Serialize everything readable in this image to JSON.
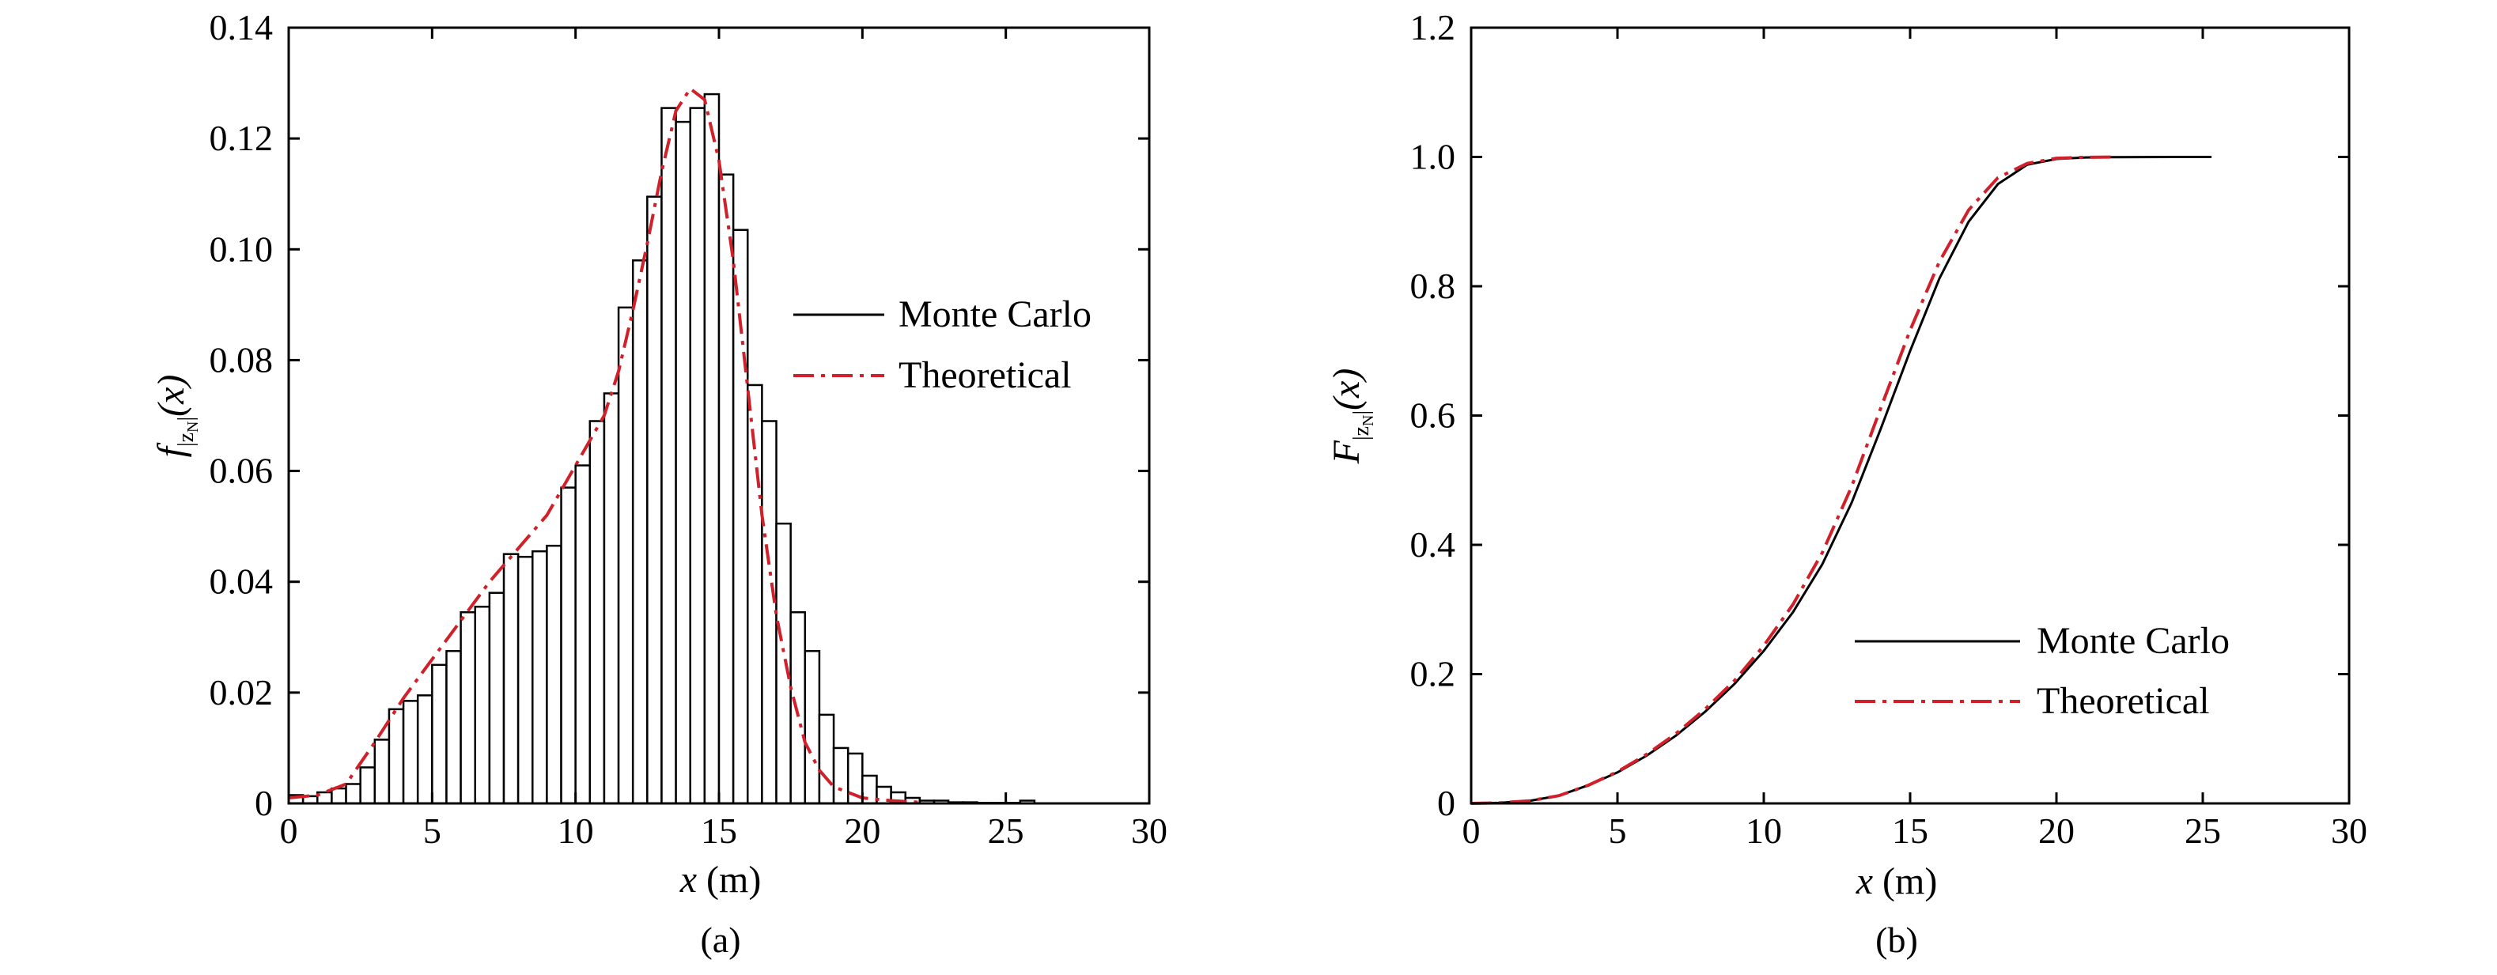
{
  "chart_data": [
    {
      "type": "bar",
      "panel_label": "(a)",
      "xlabel_var": "x",
      "xlabel_unit": " (m)",
      "ylabel_main": "f",
      "ylabel_sub": "|z",
      "ylabel_subsub": "N",
      "ylabel_sub_close": "|",
      "ylabel_arg": "(x)",
      "xlim": [
        0,
        30
      ],
      "ylim": [
        0,
        0.14
      ],
      "xticks": [
        0,
        5,
        10,
        15,
        20,
        25,
        30
      ],
      "xtick_labels": [
        "0",
        "5",
        "10",
        "15",
        "20",
        "25",
        "30"
      ],
      "yticks": [
        0,
        0.02,
        0.04,
        0.06,
        0.08,
        0.1,
        0.12,
        0.14
      ],
      "ytick_labels": [
        "0",
        "0.02",
        "0.04",
        "0.06",
        "0.08",
        "0.10",
        "0.12",
        "0.14"
      ],
      "legend": {
        "position": "right-middle",
        "entries": [
          "Monte Carlo",
          "Theoretical"
        ]
      },
      "histogram": {
        "bin_width": 0.5,
        "bin_start": 0,
        "values": [
          0.0015,
          0.0013,
          0.002,
          0.0027,
          0.0035,
          0.0065,
          0.0115,
          0.017,
          0.0185,
          0.0195,
          0.025,
          0.0275,
          0.0345,
          0.0355,
          0.038,
          0.045,
          0.0445,
          0.0455,
          0.0465,
          0.057,
          0.061,
          0.069,
          0.074,
          0.0895,
          0.098,
          0.1095,
          0.1255,
          0.123,
          0.1255,
          0.128,
          0.1135,
          0.1035,
          0.0755,
          0.069,
          0.0505,
          0.0345,
          0.0275,
          0.016,
          0.01,
          0.009,
          0.005,
          0.003,
          0.002,
          0.001,
          0.0005,
          0.0005,
          0.0002,
          0.0002,
          0.0001,
          0.0001,
          0.0001,
          0.0005
        ]
      },
      "series": [
        {
          "name": "Theoretical",
          "color": "#d0202a",
          "style": "dash-dot",
          "x": [
            0,
            1,
            2,
            3,
            4,
            5,
            6,
            7,
            8,
            9,
            10,
            11,
            11.5,
            12,
            12.5,
            13,
            13.5,
            14,
            14.5,
            15,
            15.5,
            16,
            16.5,
            17,
            17.5,
            18,
            18.5,
            19,
            19.5,
            20,
            21,
            22
          ],
          "y": [
            0.001,
            0.0015,
            0.0035,
            0.011,
            0.019,
            0.026,
            0.033,
            0.04,
            0.046,
            0.052,
            0.061,
            0.07,
            0.078,
            0.089,
            0.101,
            0.114,
            0.125,
            0.129,
            0.127,
            0.116,
            0.098,
            0.075,
            0.052,
            0.034,
            0.021,
            0.011,
            0.006,
            0.003,
            0.002,
            0.001,
            0.0005,
            0.0002
          ]
        }
      ]
    },
    {
      "type": "line",
      "panel_label": "(b)",
      "xlabel_var": "x",
      "xlabel_unit": " (m)",
      "ylabel_main": "F",
      "ylabel_sub": "|z",
      "ylabel_subsub": "N",
      "ylabel_sub_close": "|",
      "ylabel_arg": "(x)",
      "xlim": [
        0,
        30
      ],
      "ylim": [
        0,
        1.2
      ],
      "xticks": [
        0,
        5,
        10,
        15,
        20,
        25,
        30
      ],
      "xtick_labels": [
        "0",
        "5",
        "10",
        "15",
        "20",
        "25",
        "30"
      ],
      "yticks": [
        0,
        0.2,
        0.4,
        0.6,
        0.8,
        1.0,
        1.2
      ],
      "ytick_labels": [
        "0",
        "0.2",
        "0.4",
        "0.6",
        "0.8",
        "1.0",
        "1.2"
      ],
      "legend": {
        "position": "bottom-right",
        "entries": [
          "Monte Carlo",
          "Theoretical"
        ]
      },
      "series": [
        {
          "name": "Monte Carlo",
          "color": "#000000",
          "style": "solid",
          "x": [
            0,
            1,
            2,
            3,
            4,
            5,
            6,
            7,
            8,
            9,
            10,
            11,
            12,
            13,
            14,
            15,
            16,
            17,
            18,
            19,
            20,
            21,
            22,
            23,
            24,
            25.3
          ],
          "y": [
            0,
            0.001,
            0.004,
            0.012,
            0.028,
            0.048,
            0.074,
            0.105,
            0.142,
            0.185,
            0.236,
            0.296,
            0.37,
            0.465,
            0.58,
            0.7,
            0.812,
            0.9,
            0.958,
            0.988,
            0.997,
            0.9993,
            0.9997,
            0.9999,
            1.0,
            1.0
          ]
        },
        {
          "name": "Theoretical",
          "color": "#d0202a",
          "style": "dash-dot",
          "x": [
            0,
            1,
            2,
            3,
            4,
            5,
            6,
            7,
            8,
            9,
            10,
            11,
            12,
            13,
            14,
            15,
            16,
            17,
            18,
            19,
            20,
            21,
            22
          ],
          "y": [
            0,
            0.001,
            0.004,
            0.012,
            0.028,
            0.049,
            0.076,
            0.108,
            0.146,
            0.19,
            0.244,
            0.308,
            0.388,
            0.49,
            0.612,
            0.732,
            0.838,
            0.918,
            0.968,
            0.99,
            0.998,
            0.9995,
            1.0
          ]
        }
      ]
    }
  ]
}
